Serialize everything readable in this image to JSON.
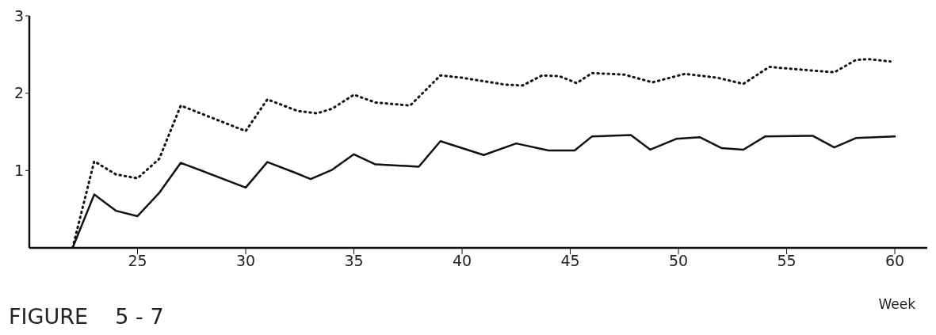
{
  "chart_data": {
    "type": "line",
    "title": "FIGURE    5 - 7",
    "xlabel": "Week",
    "xlim": [
      20,
      61.5
    ],
    "xticks": [
      25,
      30,
      35,
      40,
      45,
      50,
      55,
      60
    ],
    "ylim": [
      0,
      3
    ],
    "yticks": [
      1,
      2,
      3
    ],
    "grid": false,
    "legend": false,
    "marker": "none",
    "series": [
      {
        "color": "#111111",
        "line_style": "solid",
        "x": [
          22,
          23,
          24,
          25,
          26,
          27,
          30,
          31,
          32.3,
          33,
          34,
          35,
          36,
          38,
          39,
          41,
          42.5,
          44,
          45.2,
          46,
          47.8,
          48.7,
          49.9,
          51,
          52,
          53,
          54,
          56.2,
          57.2,
          58.2,
          60
        ],
        "values": [
          0,
          0.69,
          0.48,
          0.41,
          0.71,
          1.1,
          0.78,
          1.11,
          0.97,
          0.89,
          1.01,
          1.21,
          1.08,
          1.05,
          1.38,
          1.2,
          1.35,
          1.26,
          1.26,
          1.44,
          1.46,
          1.27,
          1.41,
          1.43,
          1.29,
          1.27,
          1.44,
          1.45,
          1.3,
          1.42,
          1.44
        ]
      },
      {
        "color": "#111111",
        "line_style": "dotted",
        "x": [
          22,
          23,
          24,
          25,
          26,
          27,
          30,
          31,
          32.4,
          33.3,
          34,
          35,
          36,
          37.6,
          39,
          40,
          42,
          42.8,
          43.7,
          44.5,
          45.3,
          46,
          47.5,
          48.8,
          50.3,
          51.8,
          53,
          54.2,
          55,
          57.2,
          58.2,
          58.8,
          59.8
        ],
        "values": [
          0,
          1.12,
          0.95,
          0.9,
          1.15,
          1.84,
          1.51,
          1.92,
          1.77,
          1.74,
          1.8,
          1.98,
          1.88,
          1.84,
          2.23,
          2.2,
          2.11,
          2.1,
          2.23,
          2.22,
          2.13,
          2.26,
          2.24,
          2.14,
          2.25,
          2.2,
          2.12,
          2.34,
          2.32,
          2.27,
          2.43,
          2.44,
          2.41
        ]
      }
    ]
  }
}
